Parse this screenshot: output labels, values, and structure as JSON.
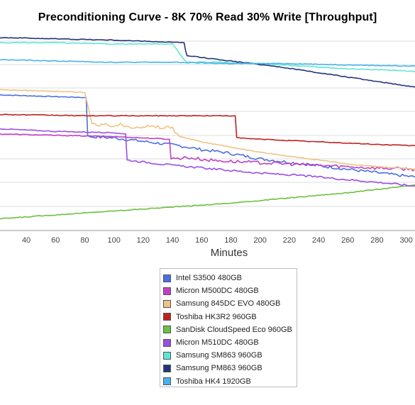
{
  "chart_data": {
    "type": "line",
    "title": "Preconditioning Curve - 8K 70% Read 30% Write [Throughput]",
    "xlabel": "Minutes",
    "ylabel": "",
    "x_ticks": [
      40,
      60,
      80,
      100,
      120,
      140,
      160,
      180,
      200,
      220,
      240,
      260,
      280,
      300
    ],
    "xlim": [
      22,
      306
    ],
    "grid": true,
    "legend_position": "bottom-center",
    "series": [
      {
        "name": "Intel S3500 480GB",
        "color": "#4a6fe3",
        "x": [
          22,
          50,
          80,
          81,
          82,
          83,
          100,
          115,
          130,
          145,
          160,
          175,
          190,
          200,
          215,
          230,
          245,
          260,
          275,
          290,
          306
        ],
        "y": [
          104,
          103,
          102,
          102,
          73,
          72,
          71,
          69,
          67,
          65,
          62,
          60,
          57,
          55,
          53,
          51,
          49,
          47,
          45,
          43,
          41
        ]
      },
      {
        "name": "Micron M500DC 480GB",
        "color": "#c43ec4",
        "x": [
          22,
          60,
          100,
          120,
          138,
          139,
          150,
          165,
          180,
          200,
          220,
          240,
          260,
          280,
          306
        ],
        "y": [
          74,
          73,
          72,
          71,
          70,
          55,
          56,
          54,
          53,
          52,
          51,
          50,
          49,
          48,
          47
        ]
      },
      {
        "name": "Samsung 845DC EVO 480GB",
        "color": "#efc384",
        "x": [
          22,
          50,
          80,
          85,
          90,
          100,
          110,
          120,
          130,
          140,
          145,
          160,
          180,
          200,
          220,
          240,
          260,
          280,
          306
        ],
        "y": [
          108,
          107,
          106,
          82,
          80,
          81,
          80,
          80,
          79,
          79,
          72,
          68,
          64,
          60,
          57,
          54,
          51,
          49,
          47
        ]
      },
      {
        "name": "Toshiba HK3R2 960GB",
        "color": "#c02020",
        "x": [
          22,
          80,
          120,
          150,
          183,
          184,
          200,
          220,
          240,
          260,
          280,
          306
        ],
        "y": [
          89,
          88,
          88,
          88,
          88,
          71,
          70,
          69,
          68,
          67,
          66,
          65
        ]
      },
      {
        "name": "SanDisk CloudSpeed Eco 960GB",
        "color": "#6cc13f",
        "x": [
          22,
          60,
          100,
          140,
          180,
          220,
          260,
          300,
          306
        ],
        "y": [
          9,
          12,
          15,
          18,
          21,
          25,
          29,
          34,
          35
        ]
      },
      {
        "name": "Micron M510DC 480GB",
        "color": "#9b4de6",
        "x": [
          22,
          60,
          100,
          108,
          109,
          140,
          170,
          200,
          230,
          260,
          290,
          306
        ],
        "y": [
          78,
          76,
          75,
          74,
          54,
          50,
          47,
          44,
          42,
          39,
          36,
          34
        ]
      },
      {
        "name": "Samsung SM863 960GB",
        "color": "#5ee6d3",
        "x": [
          22,
          60,
          100,
          140,
          148,
          150,
          170,
          200,
          230,
          260,
          290,
          306
        ],
        "y": [
          144,
          144,
          143,
          143,
          131,
          129,
          129,
          128,
          126,
          124,
          123,
          122
        ]
      },
      {
        "name": "Samsung PM863 960GB",
        "color": "#24337a",
        "x": [
          22,
          60,
          100,
          148,
          149,
          150,
          180,
          210,
          240,
          270,
          306
        ],
        "y": [
          148,
          147,
          146,
          144,
          138,
          134,
          130,
          126,
          121,
          116,
          110
        ]
      },
      {
        "name": "Toshiba HK4 1920GB",
        "color": "#45b3ee",
        "x": [
          22,
          60,
          100,
          140,
          180,
          220,
          260,
          306
        ],
        "y": [
          131,
          130,
          129,
          129,
          128,
          128,
          127,
          126
        ]
      }
    ]
  }
}
